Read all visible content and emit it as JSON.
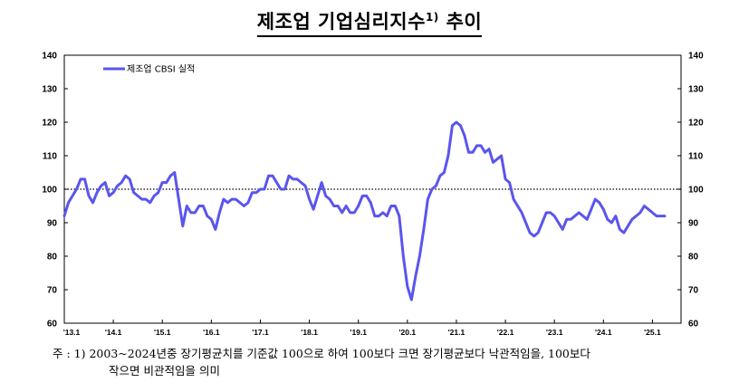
{
  "title": {
    "main": "제조업 기업심리지수",
    "sup": "1)",
    "suffix": "추이"
  },
  "note": {
    "line1": "주 : 1) 2003~2024년중 장기평균치를 기준값 100으로 하여 100보다 크면 장기평균보다 낙관적임을, 100보다",
    "line2": "작으면 비관적임을 의미"
  },
  "colors": {
    "series": "#5a55ee",
    "reference": "#000000"
  },
  "chart_data": {
    "type": "line",
    "ylim": [
      60,
      140
    ],
    "yticks": [
      "60",
      "70",
      "80",
      "90",
      "100",
      "110",
      "120",
      "130",
      "140"
    ],
    "xticks": [
      "'13.1",
      "'14.1",
      "'15.1",
      "'16.1",
      "'17.1",
      "'18.1",
      "'19.1",
      "'20.1",
      "'21.1",
      "'22.1",
      "'23.1",
      "'24.1",
      "'25.1"
    ],
    "reference_line": 100,
    "series": [
      {
        "name": "제조업 CBSI 실적",
        "start": "2013-01",
        "frequency": "monthly",
        "values": [
          92,
          96,
          98,
          100,
          103,
          103,
          98,
          96,
          99,
          101,
          102,
          98,
          99,
          101,
          102,
          104,
          103,
          99,
          98,
          97,
          97,
          96,
          98,
          99,
          102,
          102,
          104,
          105,
          97,
          89,
          95,
          93,
          93,
          95,
          95,
          92,
          91,
          88,
          93,
          97,
          96,
          97,
          97,
          96,
          95,
          96,
          99,
          99,
          100,
          100,
          104,
          104,
          102,
          100,
          100,
          104,
          103,
          103,
          102,
          101,
          97,
          94,
          98,
          102,
          98,
          97,
          95,
          95,
          93,
          95,
          93,
          93,
          95,
          98,
          98,
          96,
          92,
          92,
          93,
          92,
          95,
          95,
          92,
          80,
          71,
          67,
          74,
          80,
          88,
          97,
          100,
          101,
          104,
          105,
          110,
          119,
          120,
          119,
          116,
          111,
          111,
          113,
          113,
          111,
          112,
          108,
          109,
          110,
          103,
          102,
          97,
          95,
          93,
          90,
          87,
          86,
          87,
          90,
          93,
          93,
          92,
          90,
          88,
          91,
          91,
          92,
          93,
          92,
          91,
          94,
          97,
          96,
          94,
          91,
          90,
          92,
          88,
          87,
          89,
          91,
          92,
          93,
          95,
          94,
          93,
          92,
          92,
          92
        ]
      }
    ],
    "legend_position": "top-left"
  }
}
